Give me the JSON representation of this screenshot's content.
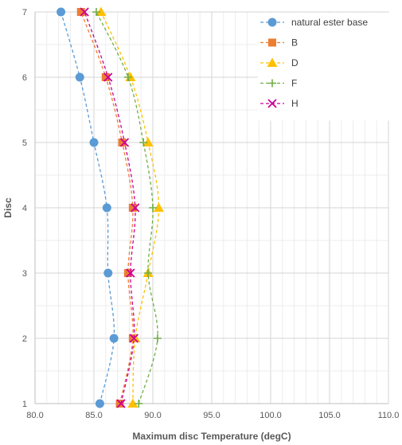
{
  "chart_data": {
    "type": "line",
    "title": "",
    "xlabel": "Maximum disc Temperature (degC)",
    "ylabel": "Disc",
    "xlim": [
      80,
      110
    ],
    "ylim": [
      1,
      7
    ],
    "x_ticks": [
      "80.0",
      "85.0",
      "90.0",
      "95.0",
      "100.0",
      "105.0",
      "110.0"
    ],
    "y_ticks": [
      "1",
      "2",
      "3",
      "4",
      "5",
      "6",
      "7"
    ],
    "grid": true,
    "legend_position": "top-right",
    "series": [
      {
        "name": "natural ester base",
        "color": "#5B9BD5",
        "marker": "circle",
        "points": [
          {
            "disc": 1,
            "temp": 85.5
          },
          {
            "disc": 2,
            "temp": 86.7
          },
          {
            "disc": 3,
            "temp": 86.2
          },
          {
            "disc": 4,
            "temp": 86.1
          },
          {
            "disc": 5,
            "temp": 85.0
          },
          {
            "disc": 6,
            "temp": 83.8
          },
          {
            "disc": 7,
            "temp": 82.2
          }
        ]
      },
      {
        "name": "B",
        "color": "#ED7D31",
        "marker": "square",
        "points": [
          {
            "disc": 1,
            "temp": 87.2
          },
          {
            "disc": 2,
            "temp": 88.3
          },
          {
            "disc": 3,
            "temp": 87.9
          },
          {
            "disc": 4,
            "temp": 88.3
          },
          {
            "disc": 5,
            "temp": 87.4
          },
          {
            "disc": 6,
            "temp": 86.0
          },
          {
            "disc": 7,
            "temp": 83.9
          }
        ]
      },
      {
        "name": "D",
        "color": "#FFC000",
        "marker": "triangle",
        "points": [
          {
            "disc": 1,
            "temp": 88.3
          },
          {
            "disc": 2,
            "temp": 88.5
          },
          {
            "disc": 3,
            "temp": 89.6
          },
          {
            "disc": 4,
            "temp": 90.5
          },
          {
            "disc": 5,
            "temp": 89.6
          },
          {
            "disc": 6,
            "temp": 88.1
          },
          {
            "disc": 7,
            "temp": 85.6
          }
        ]
      },
      {
        "name": "F",
        "color": "#70AD47",
        "marker": "plus",
        "points": [
          {
            "disc": 1,
            "temp": 88.8
          },
          {
            "disc": 2,
            "temp": 90.4
          },
          {
            "disc": 3,
            "temp": 89.6
          },
          {
            "disc": 4,
            "temp": 90.0
          },
          {
            "disc": 5,
            "temp": 89.2
          },
          {
            "disc": 6,
            "temp": 87.9
          },
          {
            "disc": 7,
            "temp": 85.2
          }
        ]
      },
      {
        "name": "H",
        "color": "#CC0099",
        "marker": "x",
        "points": [
          {
            "disc": 1,
            "temp": 87.3
          },
          {
            "disc": 2,
            "temp": 88.4
          },
          {
            "disc": 3,
            "temp": 88.1
          },
          {
            "disc": 4,
            "temp": 88.5
          },
          {
            "disc": 5,
            "temp": 87.6
          },
          {
            "disc": 6,
            "temp": 86.2
          },
          {
            "disc": 7,
            "temp": 84.2
          }
        ]
      }
    ]
  }
}
